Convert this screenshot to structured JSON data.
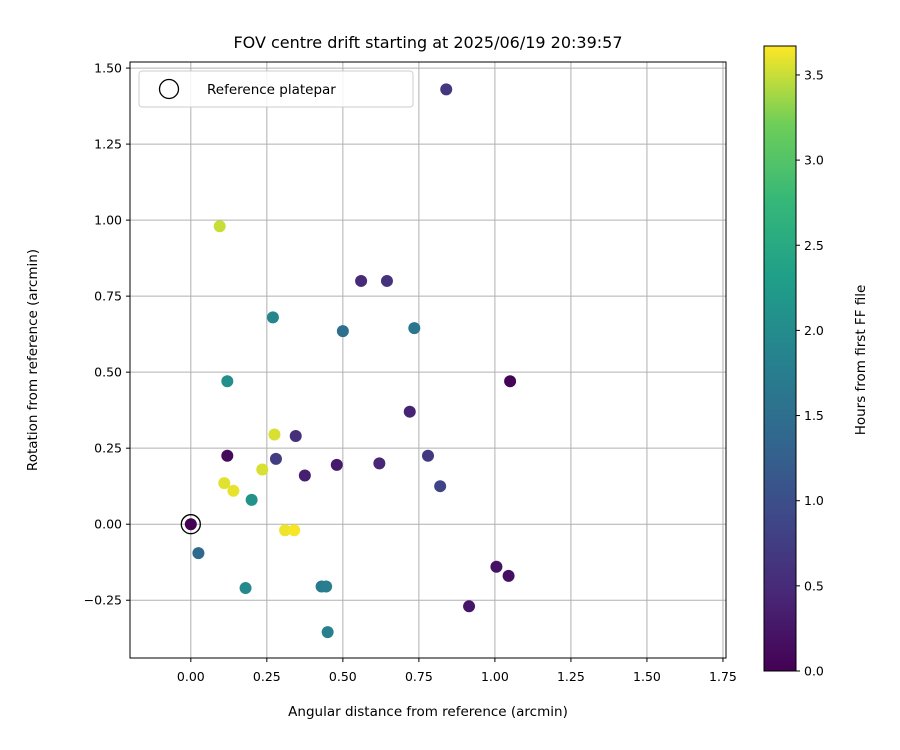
{
  "chart_data": {
    "type": "scatter",
    "title": "FOV centre drift starting at 2025/06/19 20:39:57",
    "xlabel": "Angular distance from reference (arcmin)",
    "ylabel": "Rotation from reference (arcmin)",
    "xlim": [
      -0.2,
      1.76
    ],
    "ylim": [
      -0.44,
      1.52
    ],
    "xticks": [
      0.0,
      0.25,
      0.5,
      0.75,
      1.0,
      1.25,
      1.5,
      1.75
    ],
    "xtick_labels": [
      "0.00",
      "0.25",
      "0.50",
      "0.75",
      "1.00",
      "1.25",
      "1.50",
      "1.75"
    ],
    "yticks": [
      -0.25,
      0.0,
      0.25,
      0.5,
      0.75,
      1.0,
      1.25,
      1.5
    ],
    "ytick_labels": [
      "−0.25",
      "0.00",
      "0.25",
      "0.50",
      "0.75",
      "1.00",
      "1.25",
      "1.50"
    ],
    "grid": true,
    "legend": {
      "position": "top-left",
      "entries": [
        "Reference platepar"
      ]
    },
    "reference_point": {
      "x": 0.0,
      "y": 0.0,
      "hours": 0.0
    },
    "colorbar": {
      "label": "Hours from first FF file",
      "colormap": "viridis",
      "range": [
        0.0,
        3.67
      ],
      "ticks": [
        0.0,
        0.5,
        1.0,
        1.5,
        2.0,
        2.5,
        3.0,
        3.5
      ],
      "tick_labels": [
        "0.0",
        "0.5",
        "1.0",
        "1.5",
        "2.0",
        "2.5",
        "3.0",
        "3.5"
      ]
    },
    "points": [
      {
        "x": 0.0,
        "y": 0.0,
        "hours": 0.0
      },
      {
        "x": 1.05,
        "y": 0.47,
        "hours": 0.05
      },
      {
        "x": 0.12,
        "y": 0.225,
        "hours": 0.1
      },
      {
        "x": 1.045,
        "y": -0.17,
        "hours": 0.15
      },
      {
        "x": 1.005,
        "y": -0.14,
        "hours": 0.2
      },
      {
        "x": 0.915,
        "y": -0.27,
        "hours": 0.25
      },
      {
        "x": 0.48,
        "y": 0.195,
        "hours": 0.3
      },
      {
        "x": 0.375,
        "y": 0.16,
        "hours": 0.35
      },
      {
        "x": 0.72,
        "y": 0.37,
        "hours": 0.4
      },
      {
        "x": 0.62,
        "y": 0.2,
        "hours": 0.45
      },
      {
        "x": 0.56,
        "y": 0.8,
        "hours": 0.5
      },
      {
        "x": 0.345,
        "y": 0.29,
        "hours": 0.55
      },
      {
        "x": 0.645,
        "y": 0.8,
        "hours": 0.6
      },
      {
        "x": 0.84,
        "y": 1.43,
        "hours": 0.65
      },
      {
        "x": 0.78,
        "y": 0.225,
        "hours": 0.7
      },
      {
        "x": 0.28,
        "y": 0.215,
        "hours": 0.75
      },
      {
        "x": 0.82,
        "y": 0.125,
        "hours": 0.85
      },
      {
        "x": 0.025,
        "y": -0.095,
        "hours": 1.4
      },
      {
        "x": 0.5,
        "y": 0.635,
        "hours": 1.5
      },
      {
        "x": 0.735,
        "y": 0.645,
        "hours": 1.6
      },
      {
        "x": 0.43,
        "y": -0.205,
        "hours": 1.7
      },
      {
        "x": 0.445,
        "y": -0.205,
        "hours": 1.75
      },
      {
        "x": 0.45,
        "y": -0.355,
        "hours": 1.8
      },
      {
        "x": 0.27,
        "y": 0.68,
        "hours": 1.9
      },
      {
        "x": 0.18,
        "y": -0.21,
        "hours": 1.95
      },
      {
        "x": 0.12,
        "y": 0.47,
        "hours": 2.05
      },
      {
        "x": 0.2,
        "y": 0.08,
        "hours": 2.1
      },
      {
        "x": 0.095,
        "y": 0.98,
        "hours": 3.5
      },
      {
        "x": 0.275,
        "y": 0.295,
        "hours": 3.55
      },
      {
        "x": 0.235,
        "y": 0.18,
        "hours": 3.55
      },
      {
        "x": 0.11,
        "y": 0.135,
        "hours": 3.58
      },
      {
        "x": 0.14,
        "y": 0.11,
        "hours": 3.6
      },
      {
        "x": 0.31,
        "y": -0.02,
        "hours": 3.62
      },
      {
        "x": 0.34,
        "y": -0.02,
        "hours": 3.65
      }
    ]
  }
}
